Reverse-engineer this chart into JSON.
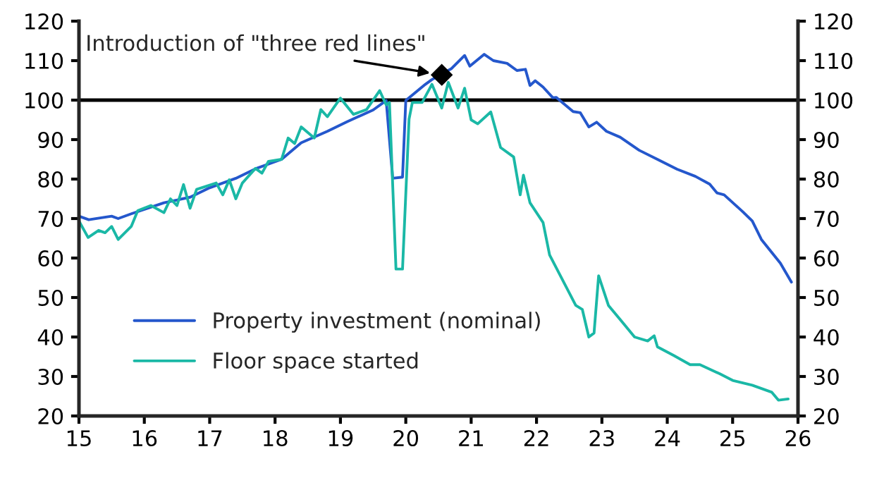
{
  "chart_data": {
    "type": "line",
    "series": [
      {
        "name": "Property investment (nominal)",
        "color": "#2457cc",
        "x": [
          15.0,
          15.15,
          15.5,
          15.6,
          15.8,
          16.3,
          16.7,
          17.0,
          17.4,
          17.7,
          18.1,
          18.4,
          18.8,
          19.1,
          19.5,
          19.7,
          19.8,
          19.95,
          20.0,
          20.3,
          20.4,
          20.7,
          20.9,
          20.98,
          21.2,
          21.34,
          21.55,
          21.7,
          21.83,
          21.9,
          21.98,
          22.1,
          22.25,
          22.3,
          22.56,
          22.67,
          22.8,
          22.92,
          23.07,
          23.28,
          23.57,
          23.86,
          24.15,
          24.43,
          24.65,
          24.76,
          24.87,
          25.15,
          25.3,
          25.44,
          25.73,
          25.9
        ],
        "values": [
          70.6,
          69.7,
          70.6,
          70,
          71.2,
          74,
          75.4,
          77.8,
          80.2,
          82.6,
          85,
          89.2,
          92.1,
          94.5,
          97.5,
          99.9,
          80.2,
          80.5,
          99.9,
          104,
          105.2,
          108,
          111.3,
          108.6,
          111.6,
          110,
          109.3,
          107.5,
          107.8,
          103.7,
          104.9,
          103.3,
          100.6,
          100.7,
          97.1,
          96.8,
          93.2,
          94.4,
          92.1,
          90.6,
          87.3,
          84.9,
          82.5,
          80.7,
          78.7,
          76.5,
          76,
          71.8,
          69.4,
          64.7,
          58.7,
          53.9
        ]
      },
      {
        "name": "Floor space started",
        "color": "#1ab8a6",
        "x": [
          15.0,
          15.14,
          15.3,
          15.4,
          15.5,
          15.6,
          15.8,
          15.9,
          16.1,
          16.3,
          16.4,
          16.5,
          16.6,
          16.7,
          16.8,
          17.1,
          17.2,
          17.3,
          17.4,
          17.5,
          17.7,
          17.8,
          17.9,
          18.1,
          18.2,
          18.3,
          18.4,
          18.6,
          18.7,
          18.8,
          19.0,
          19.2,
          19.4,
          19.6,
          19.7,
          19.75,
          19.85,
          19.95,
          20.05,
          20.1,
          20.25,
          20.4,
          20.55,
          20.65,
          20.8,
          20.9,
          21.0,
          21.1,
          21.3,
          21.45,
          21.65,
          21.75,
          21.8,
          21.9,
          22.1,
          22.2,
          22.6,
          22.7,
          22.8,
          22.88,
          22.95,
          23.1,
          23.3,
          23.5,
          23.7,
          23.8,
          23.85,
          24.1,
          24.35,
          24.5,
          24.8,
          25.0,
          25.3,
          25.6,
          25.7,
          25.85
        ],
        "values": [
          69.4,
          65.2,
          67,
          66.4,
          68,
          64.7,
          68,
          72,
          73.3,
          71.5,
          75,
          73.3,
          78.6,
          72.6,
          77.4,
          79,
          76,
          79.8,
          75,
          79,
          82.7,
          81.5,
          84.5,
          85,
          90.4,
          89,
          93.2,
          90.4,
          97.6,
          95.8,
          100.5,
          96.4,
          97.6,
          102.4,
          98.8,
          99.4,
          57.2,
          57.2,
          95.2,
          99.4,
          99.4,
          104,
          98,
          104.5,
          98,
          103,
          95,
          94,
          97,
          88,
          85.6,
          76,
          81,
          74,
          69,
          60.8,
          48,
          47,
          40,
          41,
          55.5,
          48,
          44,
          40,
          39,
          40.3,
          37.5,
          35.3,
          33,
          33,
          30.7,
          29,
          27.8,
          26,
          24,
          24.3
        ]
      }
    ],
    "xlim": [
      15,
      26
    ],
    "xticks": [
      15,
      16,
      17,
      18,
      19,
      20,
      21,
      22,
      23,
      24,
      25,
      26
    ],
    "ylim": [
      20,
      120
    ],
    "yticks": [
      20,
      30,
      40,
      50,
      60,
      70,
      80,
      90,
      100,
      110,
      120
    ],
    "y2lim": [
      20,
      120
    ],
    "y2ticks": [
      20,
      30,
      40,
      50,
      60,
      70,
      80,
      90,
      100,
      110,
      120
    ],
    "ref_lines": [
      {
        "axis": "y",
        "value": 100,
        "color": "#000000"
      }
    ],
    "annotations": [
      {
        "text": "Introduction of \"three red lines\"",
        "x": 20.55,
        "y": 106.4
      }
    ],
    "legend": "bottom left",
    "grid": false,
    "marker": "none",
    "line_style": "solid"
  }
}
